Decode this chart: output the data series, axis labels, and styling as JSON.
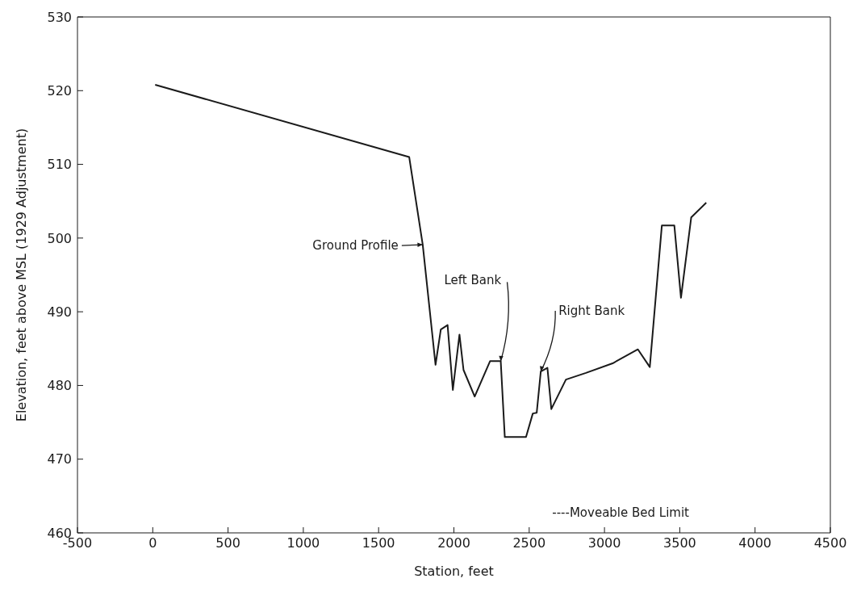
{
  "chart_data": {
    "type": "line",
    "xlabel": "Station, feet",
    "ylabel": "Elevation, feet above MSL (1929 Adjustment)",
    "x": [
      16,
      1703,
      1793,
      1878,
      1913,
      1958,
      1993,
      2037,
      2064,
      2138,
      2240,
      2311,
      2338,
      2479,
      2524,
      2550,
      2577,
      2621,
      2647,
      2744,
      2877,
      3054,
      3222,
      3301,
      3381,
      3464,
      3508,
      3576,
      3676
    ],
    "series": [
      {
        "color": "#1a1a1a",
        "values": [
          520.8,
          511.0,
          499.1,
          482.8,
          487.6,
          488.2,
          479.4,
          486.9,
          482.1,
          478.5,
          483.3,
          483.3,
          473.0,
          473.0,
          476.2,
          476.3,
          481.9,
          482.4,
          476.8,
          480.8,
          481.7,
          483.0,
          484.9,
          482.5,
          501.7,
          501.7,
          491.9,
          502.8,
          504.8
        ]
      }
    ],
    "xlim": [
      -500,
      4500
    ],
    "xticks": [
      -500,
      0,
      500,
      1000,
      1500,
      2000,
      2500,
      3000,
      3500,
      4000,
      4500
    ],
    "ylim": [
      460,
      530
    ],
    "yticks": [
      460,
      470,
      480,
      490,
      500,
      510,
      520,
      530
    ],
    "marker": "none",
    "line_style": "solid",
    "annotations": [
      {
        "text": "Ground Profile",
        "x": 1793,
        "y": 499.1
      },
      {
        "text": "Left Bank",
        "x": 2311,
        "y": 483.3
      },
      {
        "text": "Right Bank",
        "x": 2577,
        "y": 481.9
      },
      "----Moveable Bed Limit"
    ]
  }
}
